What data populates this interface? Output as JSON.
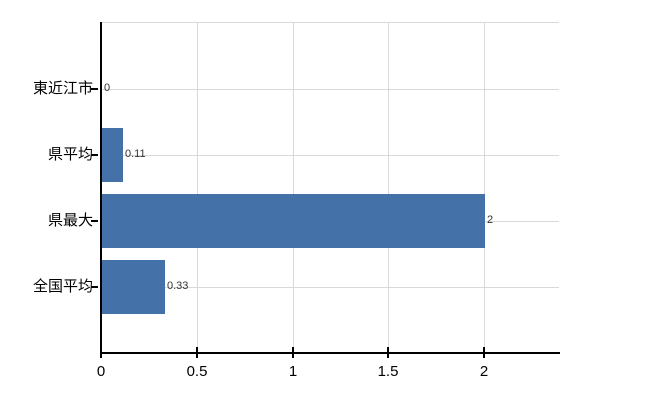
{
  "chart_data": {
    "type": "bar",
    "orientation": "horizontal",
    "title": "",
    "xlabel": "",
    "ylabel": "",
    "categories": [
      "東近江市",
      "県平均",
      "県最大",
      "全国平均"
    ],
    "values": [
      0,
      0.11,
      2,
      0.33
    ],
    "value_labels": [
      "0",
      "0.11",
      "2",
      "0.33"
    ],
    "xticks": [
      0,
      0.5,
      1,
      1.5,
      2
    ],
    "xtick_labels": [
      "0",
      "0.5",
      "1",
      "1.5",
      "2"
    ],
    "xlim": [
      0,
      2.39
    ],
    "grid": true,
    "legend": false,
    "colors": {
      "bar": "#4472a8",
      "gridline": "#d9d9d9",
      "axis": "#000000",
      "category_text": "#000000",
      "value_text": "#333333",
      "background": "#ffffff"
    }
  }
}
